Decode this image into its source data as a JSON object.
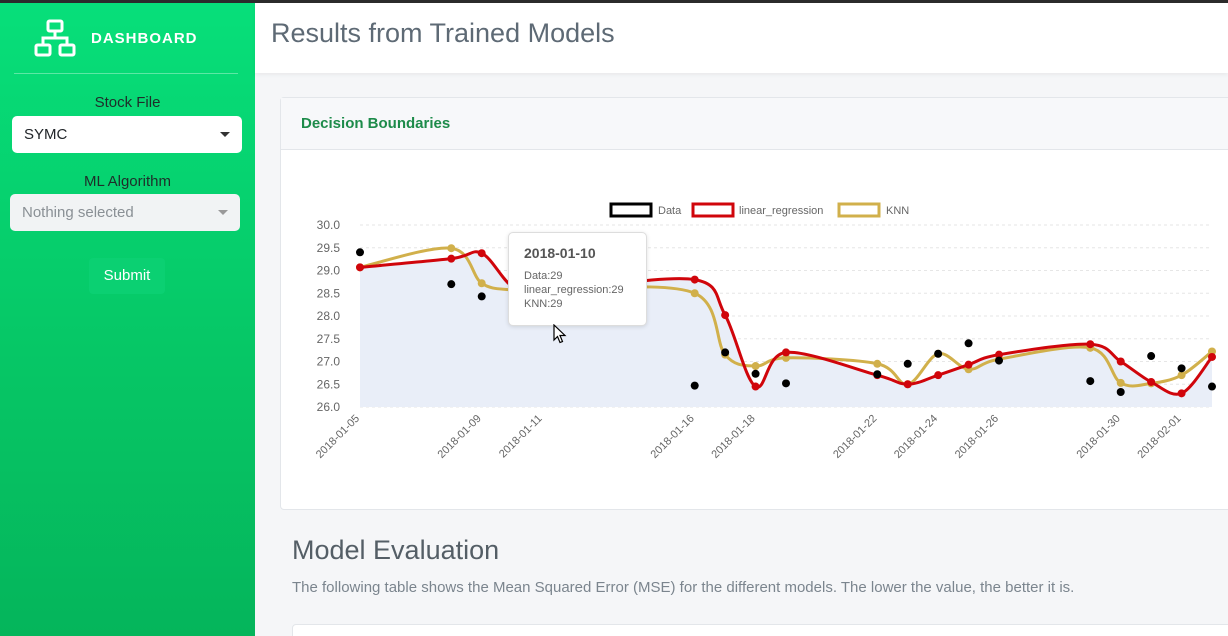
{
  "sidebar": {
    "brand": "DASHBOARD",
    "brand_icon": "sitemap-icon",
    "stock_label": "Stock File",
    "stock_value": "SYMC",
    "algo_label": "ML Algorithm",
    "algo_value": "Nothing selected",
    "submit_label": "Submit"
  },
  "header": {
    "title": "Results from Trained Models"
  },
  "card": {
    "title": "Decision Boundaries"
  },
  "tooltip": {
    "title": "2018-01-10",
    "lines": [
      "Data:29",
      "linear_regression:29",
      "KNN:29"
    ]
  },
  "evaluation": {
    "title": "Model Evaluation",
    "description": "The following table shows the Mean Squared Error (MSE) for the different models. The lower the value, the better it is."
  },
  "colors": {
    "accent": "#06d06f",
    "data": "#000000",
    "linear_regression": "#d0050b",
    "knn": "#d1b04b",
    "fill": "#e9eef8"
  },
  "chart_data": {
    "type": "line",
    "legend_position": "top",
    "ylim": [
      26.0,
      30.0
    ],
    "yticks": [
      "30.0",
      "29.5",
      "29.0",
      "28.5",
      "28.0",
      "27.5",
      "27.0",
      "26.5",
      "26.0"
    ],
    "x_ticks": [
      "2018-01-05",
      "2018-01-09",
      "2018-01-11",
      "2018-01-16",
      "2018-01-18",
      "2018-01-22",
      "2018-01-24",
      "2018-01-26",
      "2018-01-30",
      "2018-02-01"
    ],
    "x": [
      "2018-01-05",
      "2018-01-08",
      "2018-01-09",
      "2018-01-10",
      "2018-01-11",
      "2018-01-12",
      "2018-01-16",
      "2018-01-17",
      "2018-01-18",
      "2018-01-19",
      "2018-01-22",
      "2018-01-23",
      "2018-01-24",
      "2018-01-25",
      "2018-01-26",
      "2018-01-29",
      "2018-01-30",
      "2018-01-31",
      "2018-02-01",
      "2018-02-02"
    ],
    "series": [
      {
        "name": "Data",
        "kind": "scatter",
        "values": [
          29.4,
          28.7,
          28.43,
          29.35,
          28.6,
          28.6,
          26.47,
          27.2,
          26.73,
          26.52,
          26.72,
          26.95,
          27.17,
          27.4,
          27.02,
          26.57,
          26.33,
          27.12,
          26.85,
          26.45
        ]
      },
      {
        "name": "linear_regression",
        "kind": "line",
        "values": [
          29.07,
          29.26,
          29.38,
          28.65,
          28.5,
          28.6,
          28.8,
          28.02,
          26.45,
          27.2,
          26.7,
          26.5,
          26.7,
          26.93,
          27.15,
          27.38,
          27.0,
          26.55,
          26.3,
          27.1
        ]
      },
      {
        "name": "KNN",
        "kind": "line",
        "values": [
          29.07,
          29.49,
          28.72,
          28.57,
          28.5,
          28.6,
          28.5,
          27.15,
          26.9,
          27.08,
          26.95,
          26.5,
          27.17,
          26.83,
          27.05,
          27.3,
          26.53,
          26.52,
          26.7,
          27.22
        ]
      }
    ]
  }
}
